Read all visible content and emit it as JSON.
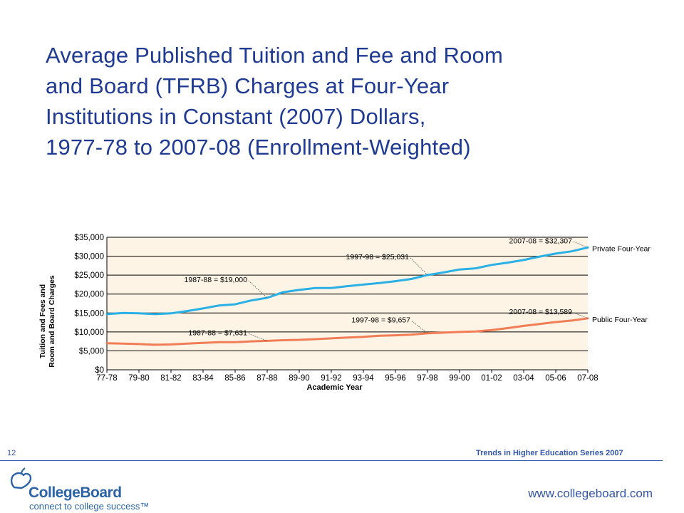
{
  "slide": {
    "title_lines": [
      "Average Published Tuition and Fee and Room",
      "and Board (TFRB) Charges at Four-Year",
      "Institutions in Constant (2007) Dollars,",
      "1977-78 to 2007-08 (Enrollment-Weighted)"
    ],
    "page_number": "12",
    "series_label": "Trends in Higher Education Series 2007",
    "website": "www.collegeboard.com",
    "logo_name": "CollegeBoard",
    "logo_tagline": "connect to college success™"
  },
  "colors": {
    "title": "#1f3a93",
    "accent": "#3355a8",
    "private_line": "#2ab0e4",
    "public_line": "#f07d55",
    "plot_bg": "#fdf4e6",
    "logo": "#2b63a6"
  },
  "chart_data": {
    "type": "line",
    "xlabel": "Academic Year",
    "ylabel": [
      "Tuition and Fees and",
      "Room and Board Charges"
    ],
    "ylim": [
      0,
      35000
    ],
    "yticks": [
      0,
      5000,
      10000,
      15000,
      20000,
      25000,
      30000,
      35000
    ],
    "ytick_labels": [
      "$0",
      "$5,000",
      "$10,000",
      "$15,000",
      "$20,000",
      "$25,000",
      "$30,000",
      "$35,000"
    ],
    "grid": true,
    "x": [
      "77-78",
      "78-79",
      "79-80",
      "80-81",
      "81-82",
      "82-83",
      "83-84",
      "84-85",
      "85-86",
      "86-87",
      "87-88",
      "88-89",
      "89-90",
      "90-91",
      "91-92",
      "92-93",
      "93-94",
      "94-95",
      "95-96",
      "96-97",
      "97-98",
      "98-99",
      "99-00",
      "00-01",
      "01-02",
      "02-03",
      "03-04",
      "04-05",
      "05-06",
      "06-07",
      "07-08"
    ],
    "x_tick_labels": [
      "77-78",
      "79-80",
      "81-82",
      "83-84",
      "85-86",
      "87-88",
      "89-90",
      "91-92",
      "93-94",
      "95-96",
      "97-98",
      "99-00",
      "01-02",
      "03-04",
      "05-06",
      "07-08"
    ],
    "series": [
      {
        "name": "Private Four-Year",
        "values": [
          14700,
          15000,
          14900,
          14700,
          14900,
          15500,
          16200,
          17000,
          17300,
          18300,
          19000,
          20500,
          21100,
          21600,
          21600,
          22100,
          22500,
          22900,
          23400,
          24000,
          25031,
          25700,
          26500,
          26800,
          27700,
          28300,
          29000,
          29900,
          30700,
          31300,
          32307
        ]
      },
      {
        "name": "Public Four-Year",
        "values": [
          7000,
          6900,
          6800,
          6600,
          6700,
          6900,
          7100,
          7300,
          7300,
          7500,
          7631,
          7800,
          7900,
          8100,
          8300,
          8500,
          8700,
          9000,
          9100,
          9300,
          9657,
          9800,
          10000,
          10100,
          10500,
          11000,
          11600,
          12100,
          12600,
          13000,
          13589
        ]
      }
    ],
    "annotations": [
      {
        "text": "2007-08 = $32,307",
        "x": "07-08",
        "y": 32307
      },
      {
        "text": "1997-98 = $25,031",
        "x": "97-98",
        "y": 25031
      },
      {
        "text": "1987-88 = $19,000",
        "x": "87-88",
        "y": 19000
      },
      {
        "text": "2007-08 = $13,589",
        "x": "07-08",
        "y": 13589
      },
      {
        "text": "1997-98 = $9,657",
        "x": "97-98",
        "y": 9657
      },
      {
        "text": "1987-88 = $7,631",
        "x": "87-88",
        "y": 7631
      }
    ]
  }
}
